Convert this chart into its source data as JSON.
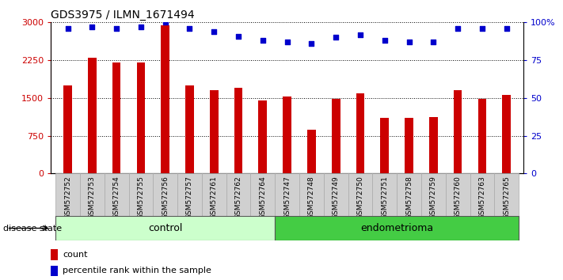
{
  "title": "GDS3975 / ILMN_1671494",
  "samples": [
    "GSM572752",
    "GSM572753",
    "GSM572754",
    "GSM572755",
    "GSM572756",
    "GSM572757",
    "GSM572761",
    "GSM572762",
    "GSM572764",
    "GSM572747",
    "GSM572748",
    "GSM572749",
    "GSM572750",
    "GSM572751",
    "GSM572758",
    "GSM572759",
    "GSM572760",
    "GSM572763",
    "GSM572765"
  ],
  "counts": [
    1750,
    2300,
    2200,
    2200,
    2950,
    1750,
    1650,
    1700,
    1450,
    1530,
    870,
    1480,
    1590,
    1100,
    1100,
    1120,
    1650,
    1490,
    1560
  ],
  "percentiles": [
    96,
    97,
    96,
    97,
    100,
    96,
    94,
    91,
    88,
    87,
    86,
    90,
    92,
    88,
    87,
    87,
    96,
    96,
    96
  ],
  "control_count": 9,
  "endometrioma_count": 10,
  "bar_color": "#cc0000",
  "dot_color": "#0000cc",
  "control_label": "control",
  "endometrioma_label": "endometrioma",
  "disease_state_label": "disease state",
  "legend_count": "count",
  "legend_percentile": "percentile rank within the sample",
  "ylim_left": [
    0,
    3000
  ],
  "ylim_right": [
    0,
    100
  ],
  "yticks_left": [
    0,
    750,
    1500,
    2250,
    3000
  ],
  "yticks_right": [
    0,
    25,
    50,
    75,
    100
  ],
  "grid_values": [
    750,
    1500,
    2250,
    3000
  ],
  "control_bg": "#ccffcc",
  "endometrioma_bg": "#44cc44",
  "xticklabel_bg": "#d0d0d0"
}
